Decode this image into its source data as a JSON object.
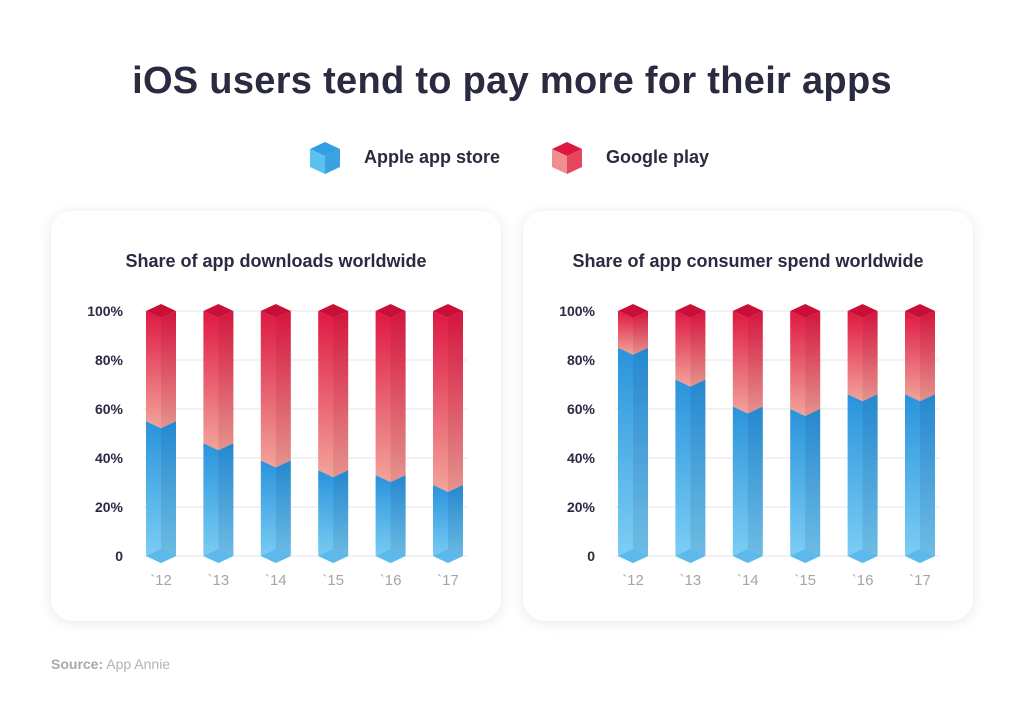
{
  "title": "iOS users tend to pay more for their apps",
  "legend": [
    {
      "label": "Apple app store",
      "color": "#2d9be0"
    },
    {
      "label": "Google play",
      "color": "#e0143f"
    }
  ],
  "source": {
    "label": "Source:",
    "text": "App Annie"
  },
  "colors": {
    "apple_light": "#7fd0f5",
    "apple_dark": "#2a93dc",
    "google_light": "#f2a49a",
    "google_dark": "#df1843"
  },
  "chart_data": [
    {
      "type": "bar",
      "stacked": true,
      "title": "Share of app downloads worldwide",
      "categories": [
        "`12",
        "`13",
        "`14",
        "`15",
        "`16",
        "`17"
      ],
      "series": [
        {
          "name": "Apple app store",
          "values": [
            55,
            46,
            39,
            35,
            33,
            29
          ]
        },
        {
          "name": "Google play",
          "values": [
            45,
            54,
            61,
            65,
            67,
            71
          ]
        }
      ],
      "ylim": [
        0,
        100
      ],
      "yticks": [
        "0",
        "20%",
        "40%",
        "60%",
        "80%",
        "100%"
      ],
      "grid": true
    },
    {
      "type": "bar",
      "stacked": true,
      "title": "Share of app consumer spend worldwide",
      "categories": [
        "`12",
        "`13",
        "`14",
        "`15",
        "`16",
        "`17"
      ],
      "series": [
        {
          "name": "Apple app store",
          "values": [
            85,
            72,
            61,
            60,
            66,
            66
          ]
        },
        {
          "name": "Google play",
          "values": [
            15,
            28,
            39,
            40,
            34,
            34
          ]
        }
      ],
      "ylim": [
        0,
        100
      ],
      "yticks": [
        "0",
        "20%",
        "40%",
        "60%",
        "80%",
        "100%"
      ],
      "grid": true
    }
  ]
}
